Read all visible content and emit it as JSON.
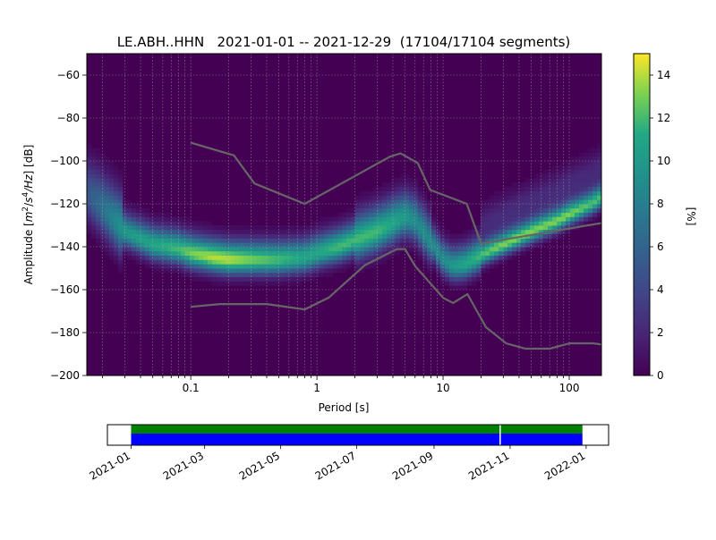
{
  "chart_data": [
    {
      "type": "heatmap",
      "title": "LE.ABH..HHN   2021-01-01 -- 2021-12-29  (17104/17104 segments)",
      "xlabel": "Period [s]",
      "ylabel": "Amplitude [m2/s4/Hz] [dB]",
      "x_scale": "log",
      "xlim": [
        0.015,
        180
      ],
      "ylim": [
        -200,
        -50
      ],
      "x_ticks": [
        {
          "value": 0.1,
          "label": "0.1"
        },
        {
          "value": 1,
          "label": "1"
        },
        {
          "value": 10,
          "label": "10"
        },
        {
          "value": 100,
          "label": "100"
        }
      ],
      "y_ticks": [
        {
          "value": -60,
          "label": "−60"
        },
        {
          "value": -80,
          "label": "−80"
        },
        {
          "value": -100,
          "label": "−100"
        },
        {
          "value": -120,
          "label": "−120"
        },
        {
          "value": -140,
          "label": "−140"
        },
        {
          "value": -160,
          "label": "−160"
        },
        {
          "value": -180,
          "label": "−180"
        },
        {
          "value": -200,
          "label": "−200"
        }
      ],
      "grid": true,
      "colorbar": {
        "label": "[%]",
        "range": [
          0,
          15
        ],
        "ticks": [
          {
            "value": 0,
            "label": "0"
          },
          {
            "value": 2,
            "label": "2"
          },
          {
            "value": 4,
            "label": "4"
          },
          {
            "value": 6,
            "label": "6"
          },
          {
            "value": 8,
            "label": "8"
          },
          {
            "value": 10,
            "label": "10"
          },
          {
            "value": 12,
            "label": "12"
          },
          {
            "value": 14,
            "label": "14"
          }
        ]
      },
      "ppsd_ridge": {
        "periods": [
          0.015,
          0.02,
          0.03,
          0.05,
          0.08,
          0.1,
          0.15,
          0.2,
          0.3,
          0.5,
          0.8,
          1,
          1.5,
          2,
          3,
          4,
          5,
          6,
          8,
          10,
          12,
          15,
          20,
          30,
          50,
          80,
          100,
          150,
          180
        ],
        "db": [
          -115,
          -122,
          -133,
          -139,
          -141,
          -143,
          -145,
          -146,
          -146,
          -146,
          -145,
          -143,
          -140,
          -137,
          -133,
          -129,
          -126,
          -128,
          -138,
          -146,
          -149,
          -148,
          -144,
          -139,
          -133,
          -128,
          -125,
          -120,
          -117
        ],
        "peak_percent": [
          5,
          7,
          10,
          11,
          12,
          13,
          14,
          14,
          13,
          12,
          11,
          11,
          12,
          12,
          12,
          11,
          10,
          9,
          9,
          9,
          10,
          11,
          12,
          13,
          13,
          13,
          13,
          12,
          12
        ]
      },
      "noise_models": [
        {
          "periods": [
            0.1,
            0.22,
            0.32,
            0.8,
            3.8,
            4.6,
            6.3,
            7.9,
            15.4,
            20,
            354.8
          ],
          "db": [
            -91.5,
            -97.4,
            -110.5,
            -120,
            -98,
            -96.5,
            -101,
            -113.5,
            -120,
            -138.5,
            -126
          ]
        },
        {
          "periods": [
            0.1,
            0.17,
            0.4,
            0.8,
            1.24,
            2.4,
            4.3,
            5,
            6,
            10,
            12,
            15.6,
            21.9,
            31.6,
            45,
            70,
            101,
            154,
            328
          ],
          "db": [
            -168,
            -166.7,
            -166.7,
            -169.2,
            -163.7,
            -148.6,
            -141.1,
            -141.1,
            -149,
            -163.8,
            -166.2,
            -162.1,
            -177.5,
            -185,
            -187.5,
            -187.5,
            -185,
            -185,
            -187.5
          ]
        }
      ]
    },
    {
      "type": "bar",
      "x_ticks": [
        "2021-01",
        "2021-03",
        "2021-05",
        "2021-07",
        "2021-09",
        "2021-11",
        "2022-01"
      ],
      "xlim": [
        "2020-12-13",
        "2022-01-19"
      ],
      "coverage_start": "2021-01-01",
      "coverage_end": "2021-12-29",
      "gap_date": "2021-10-24",
      "colors": {
        "data_available": "#0000ff",
        "processed": "#008000"
      }
    }
  ]
}
